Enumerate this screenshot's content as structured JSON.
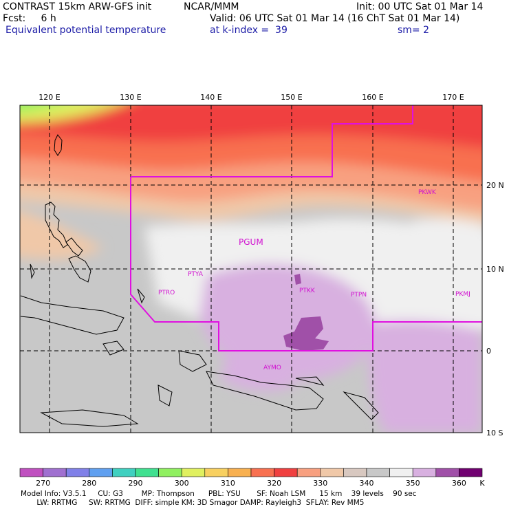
{
  "header": {
    "line1_left": "CONTRAST 15km ARW-GFS init",
    "line1_mid": "NCAR/MMM",
    "line1_right": "Init: 00 UTC Sat 01 Mar 14",
    "line2_left": "Fcst:     6 h",
    "line2_right": "Valid: 06 UTC Sat 01 Mar 14 (16 ChT Sat 01 Mar 14)",
    "line3_left": "Equivalent potential temperature",
    "line3_mid": "at k-index =  39",
    "line3_right": "sm= 2"
  },
  "map": {
    "lon_labels": [
      "120 E",
      "130 E",
      "140 E",
      "150 E",
      "160 E",
      "170 E"
    ],
    "lat_labels": [
      "20 N",
      "10 N",
      "0",
      "10 S"
    ],
    "stations": [
      "PKWK",
      "PGUM",
      "PTYA",
      "PTRO",
      "PTKK",
      "PTPN",
      "PKMJ",
      "AYMO"
    ],
    "colors": {
      "domain_outline": "#e010e0",
      "station_label": "#d010d0",
      "gridline": "#000000"
    }
  },
  "colorbar": {
    "tick_labels": [
      "270",
      "280",
      "290",
      "300",
      "310",
      "320",
      "330",
      "340",
      "350",
      "360",
      "K"
    ],
    "colors": [
      "#c050c0",
      "#a070d0",
      "#8080e8",
      "#60a0f0",
      "#40d0c0",
      "#40e090",
      "#90f060",
      "#e0f060",
      "#f8d060",
      "#f8b050",
      "#f87050",
      "#f04040",
      "#f8a080",
      "#f0c8a8",
      "#d8c8c0",
      "#c8c8c8",
      "#f0f0f0",
      "#d8b0e0",
      "#a050a8",
      "#700070"
    ]
  },
  "footer": {
    "line1": "Model Info: V3.5.1     CU: G3        MP: Thompson      PBL: YSU       SF: Noah LSM      15 km    39 levels    90 sec",
    "line2": "       LW: RRTMG     SW: RRTMG  DIFF: simple KM: 3D Smagor DAMP: Rayleigh3  SFLAY: Rev MM5"
  }
}
